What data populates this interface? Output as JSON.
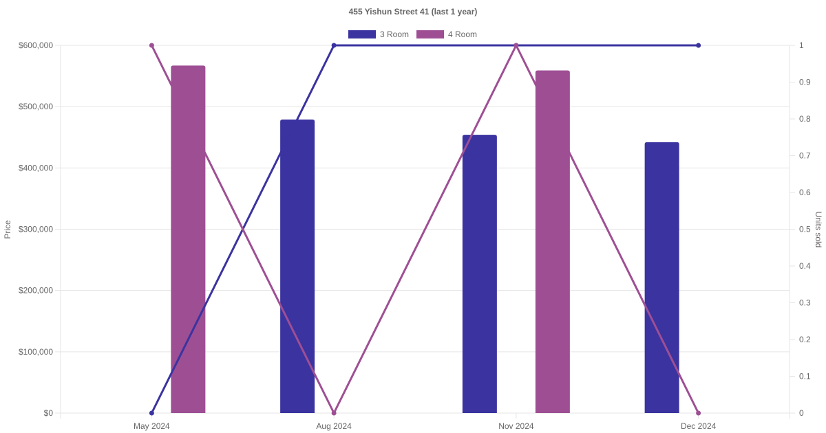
{
  "chart_data": {
    "type": "bar",
    "title": "455 Yishun Street 41 (last 1 year)",
    "categories": [
      "May 2024",
      "Aug 2024",
      "Nov 2024",
      "Dec 2024"
    ],
    "y_left": {
      "label": "Price",
      "ylim": [
        0,
        600000
      ],
      "ticks": [
        "$0",
        "$100,000",
        "$200,000",
        "$300,000",
        "$400,000",
        "$500,000",
        "$600,000"
      ]
    },
    "y_right": {
      "label": "Units sold",
      "ylim": [
        0,
        1
      ],
      "ticks": [
        "0",
        "0.1",
        "0.2",
        "0.3",
        "0.4",
        "0.5",
        "0.6",
        "0.7",
        "0.8",
        "0.9",
        "1"
      ]
    },
    "legend": {
      "placement": "top-center",
      "entries": [
        "3 Room",
        "4 Room"
      ]
    },
    "grid": true,
    "series": [
      {
        "name": "3 Room",
        "color": "#3a33a0",
        "price": [
          null,
          479000,
          454000,
          442000
        ],
        "units_sold": [
          0,
          1,
          1,
          1
        ]
      },
      {
        "name": "4 Room",
        "color": "#9e4f94",
        "price": [
          567000,
          null,
          559000,
          null
        ],
        "units_sold": [
          1,
          0,
          1,
          0
        ]
      }
    ]
  }
}
